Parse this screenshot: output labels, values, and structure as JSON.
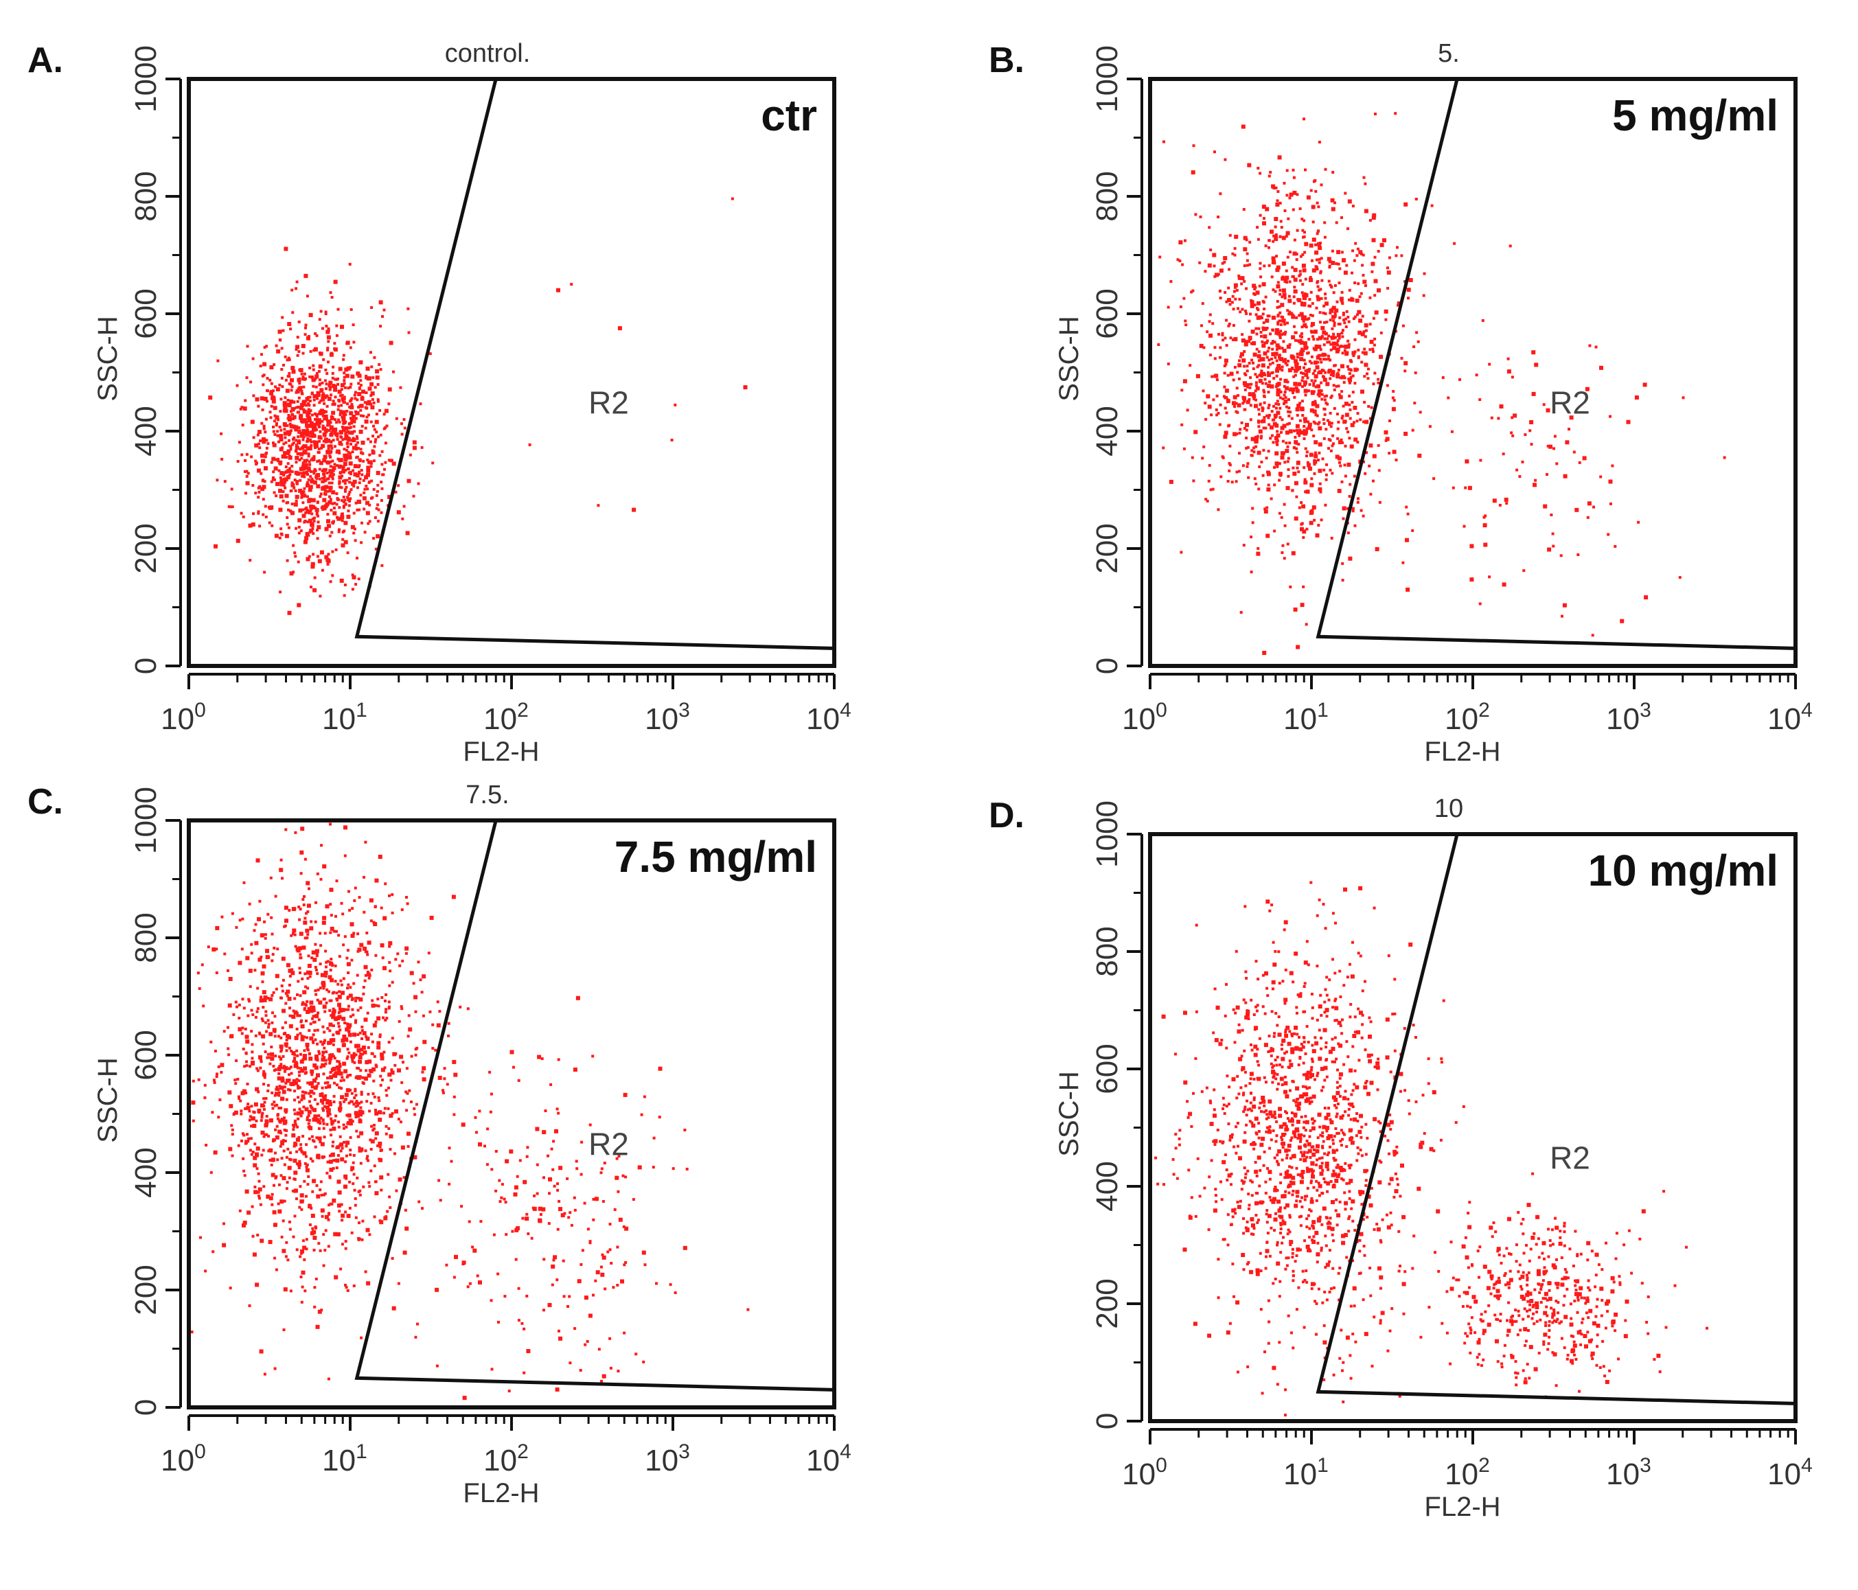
{
  "figure": {
    "panels": [
      {
        "letter": "A.",
        "sample_title": "control.",
        "concentration_label": "ctr"
      },
      {
        "letter": "B.",
        "sample_title": "5.",
        "concentration_label": "5 mg/ml"
      },
      {
        "letter": "C.",
        "sample_title": "7.5.",
        "concentration_label": "7.5 mg/ml"
      },
      {
        "letter": "D.",
        "sample_title": "10",
        "concentration_label": "10 mg/ml"
      }
    ]
  },
  "colors": {
    "dots": "#ff1a1a",
    "frame": "#111111"
  },
  "chart_data": [
    {
      "type": "scatter",
      "title": "control.",
      "annotation": "ctr",
      "xlabel": "FL2-H",
      "ylabel": "SSC-H",
      "xscale": "log",
      "xlim": [
        1,
        10000
      ],
      "ylim": [
        0,
        1000
      ],
      "xticks": [
        {
          "base": "10",
          "exp": "0"
        },
        {
          "base": "10",
          "exp": "1"
        },
        {
          "base": "10",
          "exp": "2"
        },
        {
          "base": "10",
          "exp": "3"
        },
        {
          "base": "10",
          "exp": "4"
        }
      ],
      "yticks": [
        0,
        200,
        400,
        600,
        800,
        1000
      ],
      "gate": {
        "name": "R2",
        "vertices": [
          [
            11,
            50
          ],
          [
            80,
            1000
          ],
          [
            10000,
            1000
          ],
          [
            10000,
            30
          ]
        ]
      },
      "populations": [
        {
          "region": "negative",
          "fl2_center": 6.5,
          "ssc_center": 380,
          "fl2_spread_decades": 0.22,
          "ssc_spread": 95,
          "approx_events": 1400
        },
        {
          "region": "R2",
          "fl2_center": 350,
          "ssc_center": 420,
          "fl2_spread_decades": 0.45,
          "ssc_spread": 150,
          "approx_events": 10
        }
      ]
    },
    {
      "type": "scatter",
      "title": "5.",
      "annotation": "5 mg/ml",
      "xlabel": "FL2-H",
      "ylabel": "SSC-H",
      "xscale": "log",
      "xlim": [
        1,
        10000
      ],
      "ylim": [
        0,
        1000
      ],
      "xticks": [
        {
          "base": "10",
          "exp": "0"
        },
        {
          "base": "10",
          "exp": "1"
        },
        {
          "base": "10",
          "exp": "2"
        },
        {
          "base": "10",
          "exp": "3"
        },
        {
          "base": "10",
          "exp": "4"
        }
      ],
      "yticks": [
        0,
        200,
        400,
        600,
        800,
        1000
      ],
      "gate": {
        "name": "R2",
        "vertices": [
          [
            11,
            50
          ],
          [
            80,
            1000
          ],
          [
            10000,
            1000
          ],
          [
            10000,
            30
          ]
        ]
      },
      "populations": [
        {
          "region": "negative",
          "fl2_center": 8,
          "ssc_center": 520,
          "fl2_spread_decades": 0.3,
          "ssc_spread": 140,
          "approx_events": 1500
        },
        {
          "region": "R2",
          "fl2_center": 250,
          "ssc_center": 330,
          "fl2_spread_decades": 0.4,
          "ssc_spread": 120,
          "approx_events": 110
        }
      ]
    },
    {
      "type": "scatter",
      "title": "7.5.",
      "annotation": "7.5 mg/ml",
      "xlabel": "FL2-H",
      "ylabel": "SSC-H",
      "xscale": "log",
      "xlim": [
        1,
        10000
      ],
      "ylim": [
        0,
        1000
      ],
      "xticks": [
        {
          "base": "10",
          "exp": "0"
        },
        {
          "base": "10",
          "exp": "1"
        },
        {
          "base": "10",
          "exp": "2"
        },
        {
          "base": "10",
          "exp": "3"
        },
        {
          "base": "10",
          "exp": "4"
        }
      ],
      "yticks": [
        0,
        200,
        400,
        600,
        800,
        1000
      ],
      "gate": {
        "name": "R2",
        "vertices": [
          [
            11,
            50
          ],
          [
            80,
            1000
          ],
          [
            10000,
            1000
          ],
          [
            10000,
            30
          ]
        ]
      },
      "populations": [
        {
          "region": "negative",
          "fl2_center": 6,
          "ssc_center": 570,
          "fl2_spread_decades": 0.3,
          "ssc_spread": 160,
          "approx_events": 1600
        },
        {
          "region": "R2",
          "fl2_center": 180,
          "ssc_center": 330,
          "fl2_spread_decades": 0.38,
          "ssc_spread": 150,
          "approx_events": 230
        }
      ]
    },
    {
      "type": "scatter",
      "title": "10",
      "annotation": "10 mg/ml",
      "xlabel": "FL2-H",
      "ylabel": "SSC-H",
      "xscale": "log",
      "xlim": [
        1,
        10000
      ],
      "ylim": [
        0,
        1000
      ],
      "xticks": [
        {
          "base": "10",
          "exp": "0"
        },
        {
          "base": "10",
          "exp": "1"
        },
        {
          "base": "10",
          "exp": "2"
        },
        {
          "base": "10",
          "exp": "3"
        },
        {
          "base": "10",
          "exp": "4"
        }
      ],
      "yticks": [
        0,
        200,
        400,
        600,
        800,
        1000
      ],
      "gate": {
        "name": "R2",
        "vertices": [
          [
            11,
            50
          ],
          [
            80,
            1000
          ],
          [
            10000,
            1000
          ],
          [
            10000,
            30
          ]
        ]
      },
      "populations": [
        {
          "region": "negative",
          "fl2_center": 9,
          "ssc_center": 480,
          "fl2_spread_decades": 0.32,
          "ssc_spread": 160,
          "approx_events": 1200
        },
        {
          "region": "R2",
          "fl2_center": 280,
          "ssc_center": 200,
          "fl2_spread_decades": 0.3,
          "ssc_spread": 70,
          "approx_events": 420
        }
      ]
    }
  ]
}
